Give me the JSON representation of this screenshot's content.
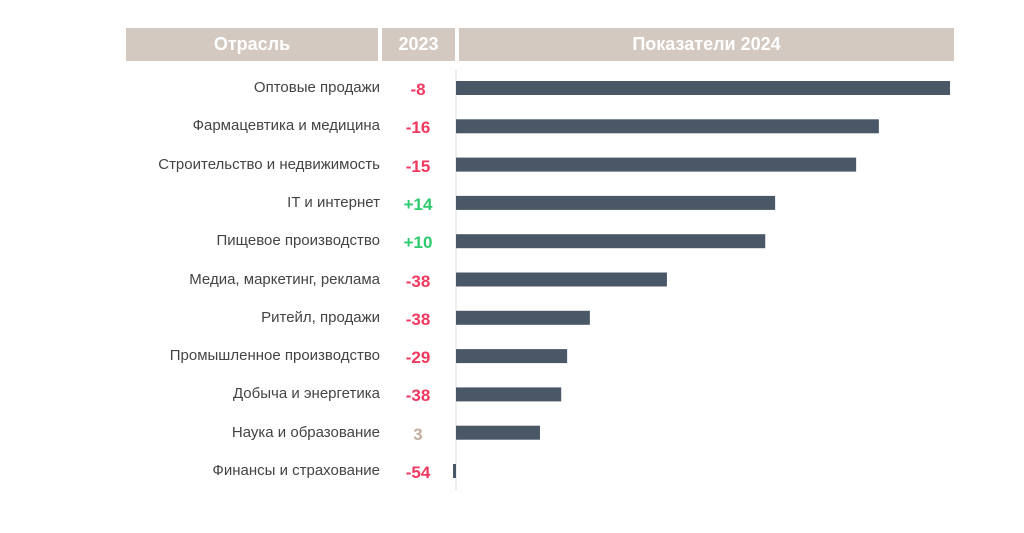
{
  "header": {
    "col_industry": "Отрасль",
    "col_2023": "2023",
    "col_2024": "Показатели 2024"
  },
  "colors": {
    "bar": "#4a5766",
    "negative": "#f0395f",
    "positive": "#2ecb6e",
    "neutral": "#c2ada0",
    "header_bg": "#d3c9c0"
  },
  "chart_data": {
    "type": "bar",
    "orientation": "horizontal",
    "categories": [
      "Оптовые продажи",
      "Фармацевтика и медицина",
      "Строительство и недвижимость",
      "IT и интернет",
      "Пищевое производство",
      "Медиа, маркетинг, реклама",
      "Ритейл, продажи",
      "Промышленное производство",
      "Добыча и энергетика",
      "Наука и образование",
      "Финансы и страхование"
    ],
    "values_2023": [
      "-8",
      "-16",
      "-15",
      "+14",
      "+10",
      "-38",
      "-38",
      "-29",
      "-38",
      "3",
      "-54"
    ],
    "values_2024_relative": [
      100,
      85.6,
      81,
      64.6,
      62.6,
      42.7,
      27.1,
      22.5,
      21.3,
      17,
      -0.6
    ],
    "axis_labels_shown": false,
    "grid": false
  }
}
